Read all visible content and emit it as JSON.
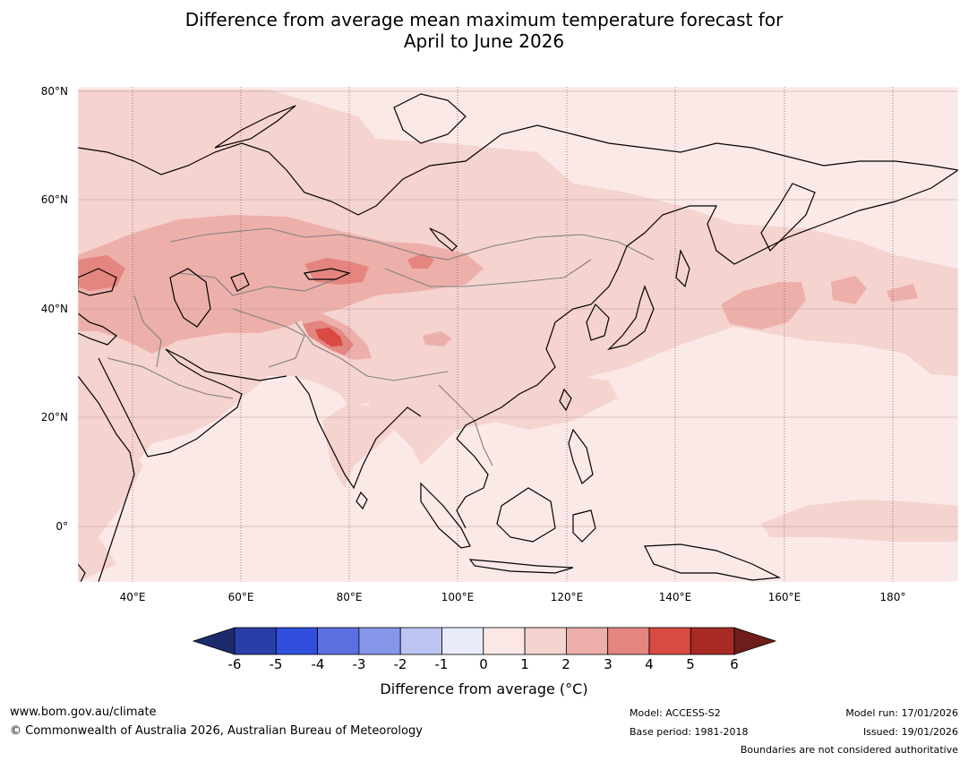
{
  "title": {
    "line1": "Difference from average mean maximum temperature forecast for",
    "line2": "April to June 2026"
  },
  "map": {
    "lat_labels": [
      "80°N",
      "60°N",
      "40°N",
      "20°N",
      "0°"
    ],
    "lon_labels": [
      "40°E",
      "60°E",
      "80°E",
      "100°E",
      "120°E",
      "140°E",
      "160°E",
      "180°"
    ],
    "colors": {
      "ocean_base": "#fbe9e7",
      "class_1_2": "#f5d3cf",
      "class_2_3": "#edafaa",
      "class_3_4": "#e58580",
      "class_4_5": "#d84a42",
      "coast": "#000000",
      "border": "#808080"
    }
  },
  "colorbar": {
    "colors": [
      "#1c2a6e",
      "#2a3eaa",
      "#2f4fdc",
      "#5b70e0",
      "#8696e8",
      "#bcc4f2",
      "#e8ebfa",
      "#fbe8e6",
      "#f5d3cf",
      "#edafaa",
      "#e58580",
      "#d84a42",
      "#a82a25",
      "#6e1d1a"
    ],
    "ticks": [
      "-6",
      "-5",
      "-4",
      "-3",
      "-2",
      "-1",
      "0",
      "1",
      "2",
      "3",
      "4",
      "5",
      "6"
    ],
    "label": "Difference from average ($^\\circ$C)"
  },
  "footer": {
    "url": "www.bom.gov.au/climate",
    "copyright": "© Commonwealth of Australia 2026, Australian Bureau of Meteorology",
    "model": "Model: ACCESS-S2",
    "base_period": "Base period: 1981-2018",
    "model_run": "Model run: 17/01/2026",
    "issued": "Issued: 19/01/2026",
    "disclaimer": "Boundaries are not considered authoritative"
  }
}
